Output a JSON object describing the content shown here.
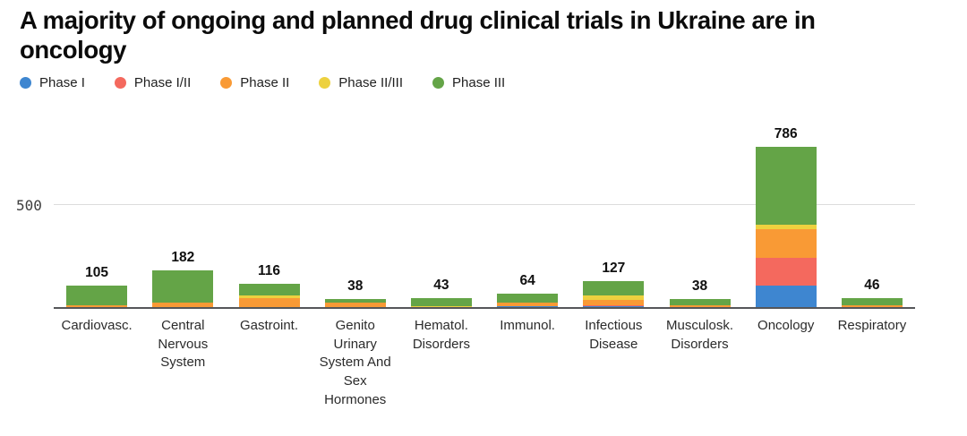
{
  "title": "A majority of ongoing and planned drug clinical trials in Ukraine are in oncology",
  "legend": [
    {
      "label": "Phase I",
      "color": "#3e86d0"
    },
    {
      "label": "Phase I/II",
      "color": "#f4695e"
    },
    {
      "label": "Phase II",
      "color": "#f99a35"
    },
    {
      "label": "Phase II/III",
      "color": "#edd13f"
    },
    {
      "label": "Phase III",
      "color": "#64a447"
    }
  ],
  "chart_data": {
    "type": "bar",
    "stacked": true,
    "title": "A majority of ongoing and planned drug clinical trials in Ukraine are in oncology",
    "categories": [
      "Cardiovasc.",
      "Central Nervous System",
      "Gastroint.",
      "Genito Urinary System And Sex Hormones",
      "Hematol. Disorders",
      "Immunol.",
      "Infectious Disease",
      "Musculosk. Disorders",
      "Oncology",
      "Respiratory"
    ],
    "series": [
      {
        "name": "Phase I",
        "color": "#3e86d0",
        "values": [
          0,
          0,
          0,
          0,
          0,
          5,
          4,
          0,
          106,
          0
        ]
      },
      {
        "name": "Phase I/II",
        "color": "#f4695e",
        "values": [
          0,
          0,
          0,
          0,
          0,
          0,
          4,
          0,
          134,
          0
        ]
      },
      {
        "name": "Phase II",
        "color": "#f99a35",
        "values": [
          10,
          20,
          42,
          20,
          0,
          15,
          29,
          9,
          143,
          9
        ]
      },
      {
        "name": "Phase II/III",
        "color": "#edd13f",
        "values": [
          0,
          0,
          15,
          4,
          3,
          0,
          18,
          0,
          20,
          0
        ]
      },
      {
        "name": "Phase III",
        "color": "#64a447",
        "values": [
          95,
          162,
          59,
          14,
          40,
          44,
          72,
          29,
          383,
          37
        ]
      }
    ],
    "totals": [
      105,
      182,
      116,
      38,
      43,
      64,
      127,
      38,
      786,
      46
    ],
    "xlabel": "",
    "ylabel": "",
    "ylim": [
      0,
      855
    ],
    "yticks": [
      500
    ],
    "ytick_label": "500",
    "grid": "horizontal-at-500",
    "legend_position": "top-left"
  }
}
